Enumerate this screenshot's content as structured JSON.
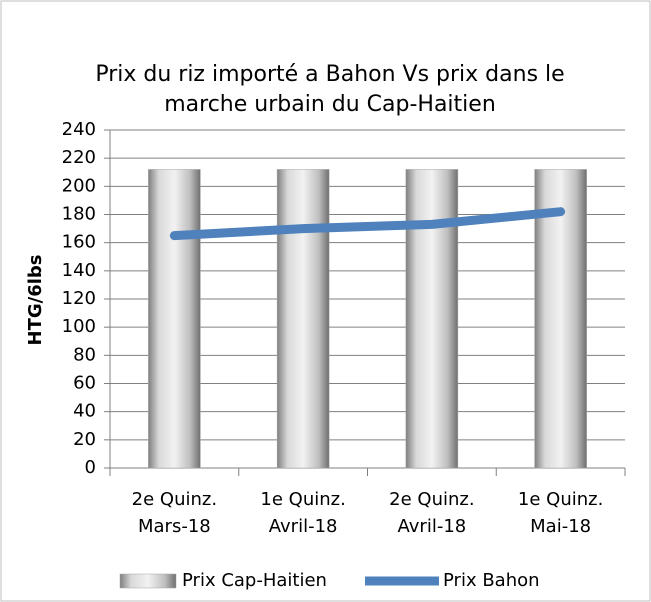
{
  "chart_data": {
    "type": "combo",
    "title": [
      "Prix du riz importé a Bahon Vs prix dans le",
      "marche urbain du Cap-Haitien"
    ],
    "y_label": "HTG/6lbs",
    "categories": [
      [
        "2e Quinz.",
        "Mars-18"
      ],
      [
        "1e Quinz.",
        "Avril-18"
      ],
      [
        "2e Quinz.",
        "Avril-18"
      ],
      [
        "1e Quinz.",
        "Mai-18"
      ]
    ],
    "series": [
      {
        "name": "Prix Cap-Haitien",
        "type": "bar",
        "color": "#a6a6a6",
        "values": [
          212,
          212,
          212,
          212
        ]
      },
      {
        "name": "Prix Bahon",
        "type": "line",
        "color": "#4f81bd",
        "values": [
          165,
          170,
          173,
          182
        ]
      }
    ],
    "ylim": [
      0,
      240
    ],
    "yticks": [
      0,
      20,
      40,
      60,
      80,
      100,
      120,
      140,
      160,
      180,
      200,
      220,
      240
    ],
    "grid": true,
    "legend": "bottom"
  }
}
